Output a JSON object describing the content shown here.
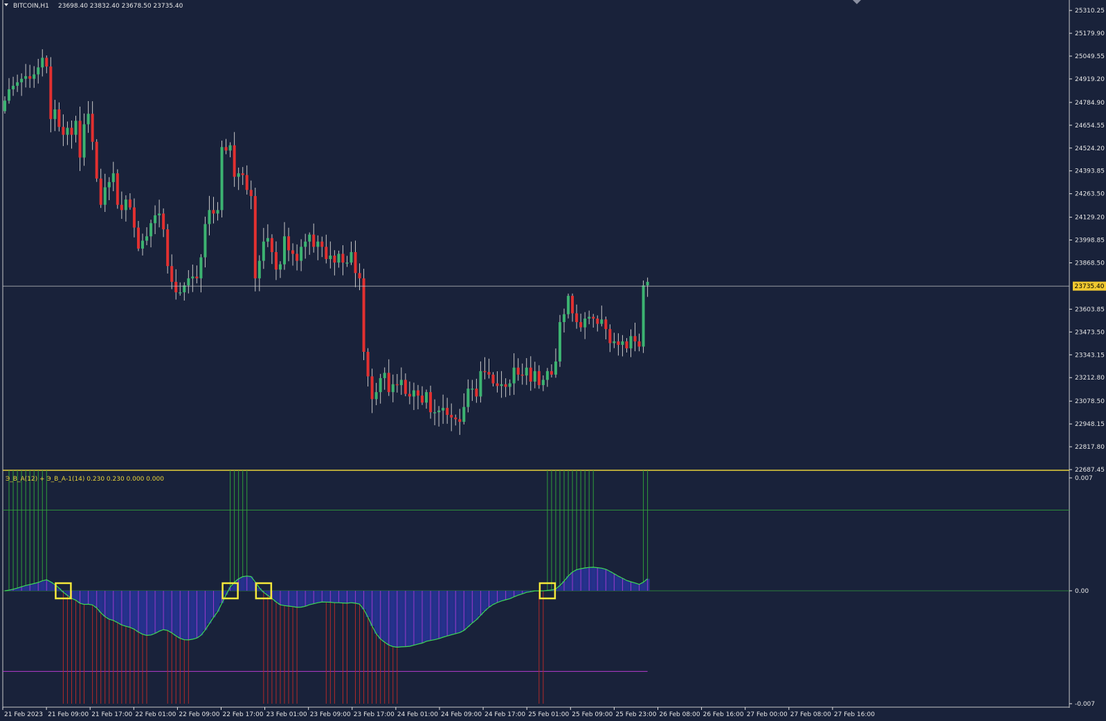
{
  "symbol": "BITCOIN,H1",
  "ohlc": "23698.40 23832.40 23678.50 23735.40",
  "indicator_label": "Э_В_А(12) + Э_В_А-1(14) 0.230 0.230 0.000 0.000",
  "colors": {
    "background": "#19223a",
    "bull": "#3cb371",
    "bear": "#e23030",
    "wick": "#c8c8c8",
    "axis": "#e6e6e6",
    "separator": "#e8d23a",
    "price_line": "#c8c8c8",
    "price_tag": "#f0c830",
    "hist_positive": "#2f9e3a",
    "hist_negative": "#b12a2a",
    "area_fill": "#25318c",
    "area_stripe": "#9b38c8",
    "osc_line": "#3ddc56",
    "upper_level": "#2f9e3a",
    "lower_level": "#b53bd0",
    "marker": "#f5e83a"
  },
  "price_axis": {
    "ticks": [
      "25310.25",
      "25179.90",
      "25049.55",
      "24919.20",
      "24784.90",
      "24654.55",
      "24524.20",
      "24393.85",
      "24263.50",
      "24129.20",
      "23998.85",
      "23868.50",
      "23603.85",
      "23473.50",
      "23343.15",
      "23212.80",
      "23078.50",
      "22948.15",
      "22817.80",
      "22687.45"
    ],
    "current_price": "23735.40"
  },
  "oscillator_axis": {
    "ticks": [
      "0.007",
      "0.00",
      "-0.007"
    ]
  },
  "time_axis": {
    "ticks": [
      "21 Feb 2023",
      "21 Feb 09:00",
      "21 Feb 17:00",
      "22 Feb 01:00",
      "22 Feb 09:00",
      "22 Feb 17:00",
      "23 Feb 01:00",
      "23 Feb 09:00",
      "23 Feb 17:00",
      "24 Feb 01:00",
      "24 Feb 09:00",
      "24 Feb 17:00",
      "25 Feb 01:00",
      "25 Feb 09:00",
      "25 Feb 23:00",
      "26 Feb 08:00",
      "26 Feb 16:00",
      "27 Feb 00:00",
      "27 Feb 08:00",
      "27 Feb 16:00"
    ]
  },
  "chart_data": [
    {
      "type": "candlestick",
      "symbol": "BITCOIN,H1",
      "ylim": [
        22687.45,
        25370
      ],
      "x_step": "1 hour",
      "closes": [
        24795,
        24860,
        24880,
        24900,
        24920,
        24935,
        24920,
        24945,
        24985,
        25040,
        24990,
        24690,
        24745,
        24645,
        24600,
        24640,
        24600,
        24680,
        24470,
        24660,
        24720,
        24560,
        24350,
        24200,
        24300,
        24330,
        24380,
        24200,
        24170,
        24230,
        24185,
        24070,
        23950,
        23995,
        24020,
        24095,
        24140,
        24150,
        24060,
        23850,
        23760,
        23700,
        23700,
        23740,
        23780,
        23790,
        23780,
        23900,
        24090,
        24170,
        24150,
        24170,
        24530,
        24510,
        24540,
        24360,
        24380,
        24370,
        24285,
        24250,
        23780,
        23880,
        23990,
        24010,
        23930,
        23830,
        23860,
        24020,
        23940,
        23920,
        23880,
        23960,
        23990,
        24030,
        23960,
        23990,
        23960,
        23890,
        23910,
        23870,
        23920,
        23870,
        23870,
        23930,
        23810,
        23780,
        23360,
        23220,
        23090,
        23130,
        23210,
        23240,
        23130,
        23175,
        23170,
        23200,
        23120,
        23105,
        23140,
        23110,
        23070,
        23130,
        23015,
        23015,
        23025,
        23040,
        23000,
        22985,
        22975,
        22960,
        23045,
        23150,
        23150,
        23105,
        23250,
        23245,
        23230,
        23180,
        23165,
        23175,
        23160,
        23180,
        23270,
        23230,
        23225,
        23270,
        23190,
        23250,
        23170,
        23200,
        23250,
        23230,
        23305,
        23530,
        23575,
        23680,
        23580,
        23530,
        23500,
        23550,
        23560,
        23550,
        23520,
        23545,
        23490,
        23410,
        23420,
        23400,
        23420,
        23380,
        23450,
        23420,
        23390,
        23740,
        23760
      ],
      "series": [
        {
          "name": "Э_В_А(12)",
          "type": "histogram",
          "note": "positive bars green, negative bars red"
        },
        {
          "name": "Э_В_А-1(14)",
          "type": "line"
        }
      ],
      "oscillator_ylim": [
        -0.007,
        0.007
      ],
      "oscillator_levels": [
        0.005,
        -0.005
      ]
    }
  ]
}
